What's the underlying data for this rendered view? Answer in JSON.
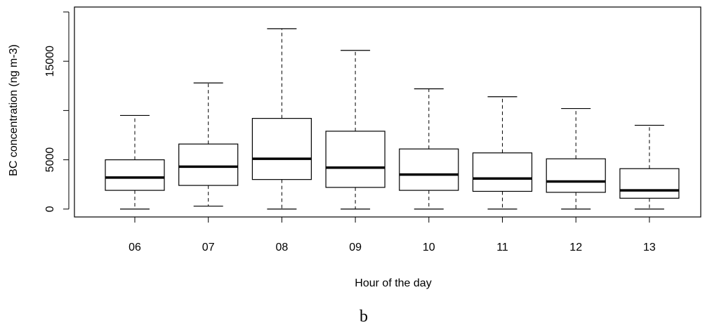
{
  "panel_label": "b",
  "chart_data": {
    "type": "boxplot",
    "title": "",
    "xlabel": "Hour of the day",
    "ylabel": "BC concentration (ng m-3)",
    "ylim": [
      -800,
      20500
    ],
    "yticks": [
      0,
      5000,
      15000
    ],
    "ytick_labels": [
      "0",
      "5000",
      "15000"
    ],
    "categories": [
      "06",
      "07",
      "08",
      "09",
      "10",
      "11",
      "12",
      "13"
    ],
    "boxes": [
      {
        "whisker_low": 0,
        "q1": 1900,
        "median": 3200,
        "q3": 5000,
        "whisker_high": 9500
      },
      {
        "whisker_low": 300,
        "q1": 2400,
        "median": 4300,
        "q3": 6600,
        "whisker_high": 12800
      },
      {
        "whisker_low": 0,
        "q1": 3000,
        "median": 5100,
        "q3": 9200,
        "whisker_high": 18300
      },
      {
        "whisker_low": 0,
        "q1": 2200,
        "median": 4200,
        "q3": 7900,
        "whisker_high": 16100
      },
      {
        "whisker_low": 0,
        "q1": 1900,
        "median": 3500,
        "q3": 6100,
        "whisker_high": 12200
      },
      {
        "whisker_low": 0,
        "q1": 1800,
        "median": 3100,
        "q3": 5700,
        "whisker_high": 11400
      },
      {
        "whisker_low": 0,
        "q1": 1700,
        "median": 2800,
        "q3": 5100,
        "whisker_high": 10200
      },
      {
        "whisker_low": 0,
        "q1": 1100,
        "median": 1900,
        "q3": 4100,
        "whisker_high": 8500
      }
    ],
    "grid": false,
    "legend": "none"
  }
}
